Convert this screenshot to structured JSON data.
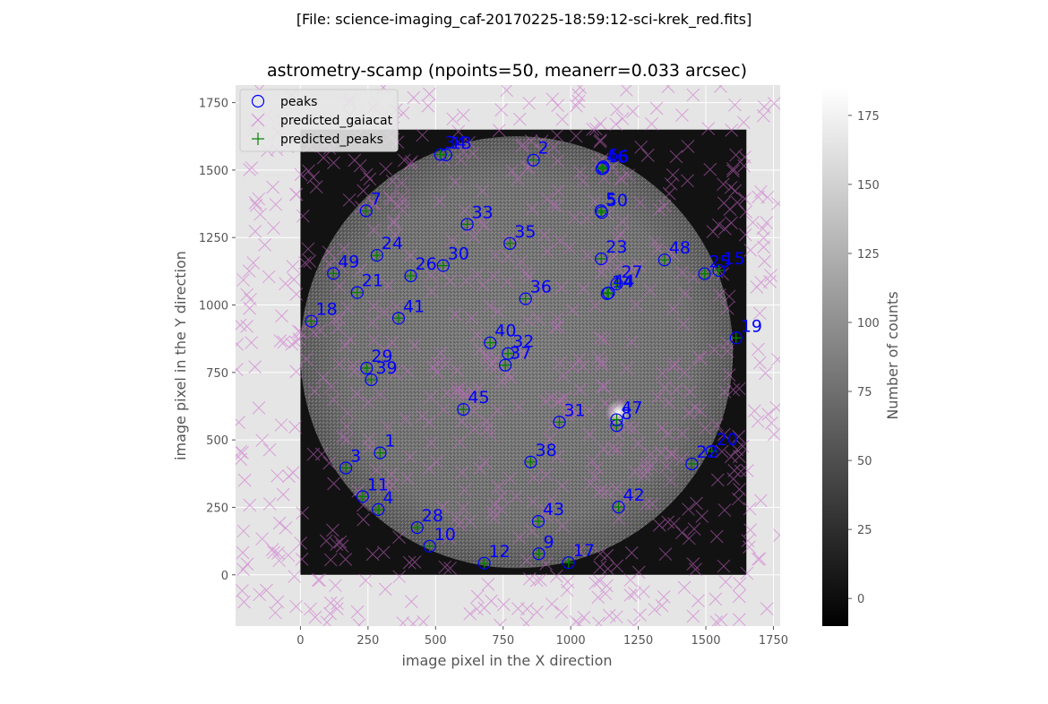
{
  "file_title": "[File: science-imaging_caf-20170225-18:59:12-sci-krek_red.fits]",
  "chart_data": {
    "type": "scatter",
    "title": "astrometry-scamp (npoints=50, meanerr=0.033 arcsec)",
    "xlabel": "image pixel in the X direction",
    "ylabel": "image pixel in the Y direction",
    "xlim": [
      -240,
      1775
    ],
    "ylim": [
      -190,
      1815
    ],
    "xticks": [
      0,
      250,
      500,
      750,
      1000,
      1250,
      1500,
      1750
    ],
    "yticks": [
      0,
      250,
      500,
      750,
      1000,
      1250,
      1500,
      1750
    ],
    "grid": true,
    "legend": {
      "location": "upper-left",
      "entries": [
        "peaks",
        "predicted_gaiacat",
        "predicted_peaks"
      ]
    },
    "image": {
      "extent": [
        0,
        1650,
        0,
        1650
      ],
      "disk_center": [
        800,
        825
      ],
      "disk_radius": 800
    },
    "colorbar": {
      "label": "Number of counts",
      "range": [
        -10,
        185
      ],
      "ticks": [
        0,
        25,
        50,
        75,
        100,
        125,
        150,
        175
      ]
    },
    "colors": {
      "peaks": "#0000ff",
      "predicted_gaiacat": "#cc66cc",
      "predicted_peaks": "#008000",
      "axes_background": "#e5e5e5",
      "point_label": "#0000ff"
    },
    "points": [
      {
        "id": "1",
        "x": 295,
        "y": 452
      },
      {
        "id": "2",
        "x": 862,
        "y": 1537
      },
      {
        "id": "3",
        "x": 168,
        "y": 396
      },
      {
        "id": "4",
        "x": 288,
        "y": 242
      },
      {
        "id": "5",
        "x": 1112,
        "y": 1349
      },
      {
        "id": "6",
        "x": 1120,
        "y": 1512
      },
      {
        "id": "7",
        "x": 243,
        "y": 1349
      },
      {
        "id": "8",
        "x": 1170,
        "y": 553
      },
      {
        "id": "9",
        "x": 882,
        "y": 78
      },
      {
        "id": "10",
        "x": 478,
        "y": 106
      },
      {
        "id": "11",
        "x": 230,
        "y": 290
      },
      {
        "id": "12",
        "x": 680,
        "y": 43
      },
      {
        "id": "13",
        "x": 538,
        "y": 1556
      },
      {
        "id": "14",
        "x": 1135,
        "y": 1042
      },
      {
        "id": "15",
        "x": 1548,
        "y": 1128
      },
      {
        "id": "16",
        "x": 1120,
        "y": 1507
      },
      {
        "id": "17",
        "x": 992,
        "y": 45
      },
      {
        "id": "18",
        "x": 40,
        "y": 940
      },
      {
        "id": "19",
        "x": 1612,
        "y": 878
      },
      {
        "id": "20",
        "x": 1522,
        "y": 458
      },
      {
        "id": "21",
        "x": 210,
        "y": 1046
      },
      {
        "id": "22",
        "x": 1448,
        "y": 411
      },
      {
        "id": "23",
        "x": 1113,
        "y": 1171
      },
      {
        "id": "24",
        "x": 283,
        "y": 1184
      },
      {
        "id": "25",
        "x": 1495,
        "y": 1116
      },
      {
        "id": "26",
        "x": 408,
        "y": 1108
      },
      {
        "id": "27",
        "x": 1170,
        "y": 1078
      },
      {
        "id": "28",
        "x": 432,
        "y": 175
      },
      {
        "id": "29",
        "x": 245,
        "y": 766
      },
      {
        "id": "30",
        "x": 528,
        "y": 1146
      },
      {
        "id": "31",
        "x": 958,
        "y": 566
      },
      {
        "id": "32",
        "x": 768,
        "y": 820
      },
      {
        "id": "33",
        "x": 617,
        "y": 1299
      },
      {
        "id": "34",
        "x": 518,
        "y": 1558
      },
      {
        "id": "35",
        "x": 775,
        "y": 1228
      },
      {
        "id": "36",
        "x": 833,
        "y": 1023
      },
      {
        "id": "37",
        "x": 758,
        "y": 777
      },
      {
        "id": "38",
        "x": 852,
        "y": 418
      },
      {
        "id": "39",
        "x": 262,
        "y": 723
      },
      {
        "id": "40",
        "x": 702,
        "y": 860
      },
      {
        "id": "41",
        "x": 363,
        "y": 951
      },
      {
        "id": "42",
        "x": 1177,
        "y": 251
      },
      {
        "id": "43",
        "x": 880,
        "y": 198
      },
      {
        "id": "44",
        "x": 1140,
        "y": 1045
      },
      {
        "id": "45",
        "x": 603,
        "y": 613
      },
      {
        "id": "46",
        "x": 1115,
        "y": 1505
      },
      {
        "id": "47",
        "x": 1170,
        "y": 575
      },
      {
        "id": "48",
        "x": 1347,
        "y": 1167
      },
      {
        "id": "49",
        "x": 122,
        "y": 1117
      },
      {
        "id": "50",
        "x": 1115,
        "y": 1343
      }
    ],
    "label_offset": [
      5,
      7
    ]
  }
}
